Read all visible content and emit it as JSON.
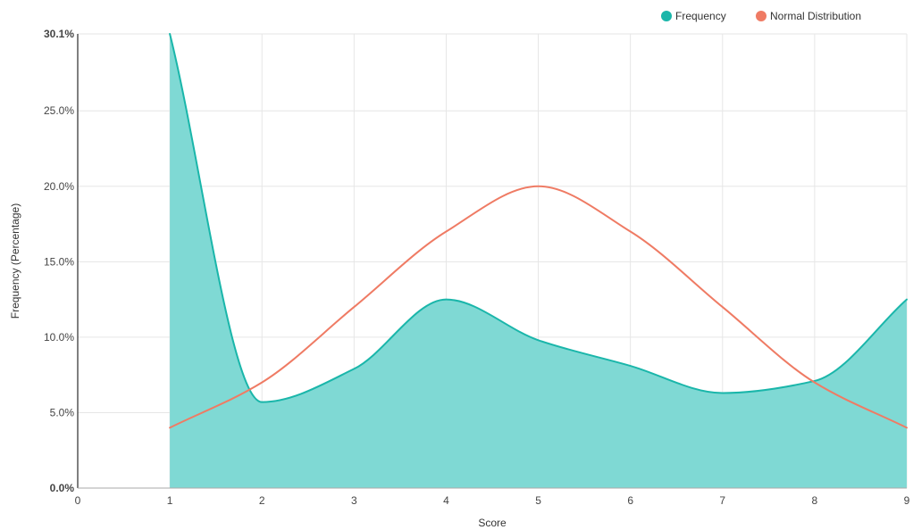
{
  "chart_data": {
    "type": "area",
    "x": [
      1,
      2,
      3,
      4,
      5,
      6,
      7,
      8,
      9
    ],
    "series": [
      {
        "name": "Frequency",
        "type": "area",
        "color": "#1ab6aa",
        "fill": "#7fd9d4",
        "values": [
          30.1,
          5.7,
          7.9,
          12.5,
          9.8,
          8.1,
          6.3,
          7.1,
          12.5
        ]
      },
      {
        "name": "Normal Distribution",
        "type": "line",
        "color": "#ef7b64",
        "values": [
          4.0,
          7.0,
          12.0,
          17.0,
          20.0,
          17.0,
          12.0,
          7.0,
          4.0
        ]
      }
    ],
    "xlabel": "Score",
    "ylabel": "Frequency (Percentage)",
    "xlim": [
      0,
      9
    ],
    "ylim": [
      0,
      30.1
    ],
    "x_ticks": [
      "0",
      "1",
      "2",
      "3",
      "4",
      "5",
      "6",
      "7",
      "8",
      "9"
    ],
    "y_ticks": [
      {
        "value": 0,
        "label": "0.0%"
      },
      {
        "value": 5,
        "label": "5.0%"
      },
      {
        "value": 10,
        "label": "10.0%"
      },
      {
        "value": 15,
        "label": "15.0%"
      },
      {
        "value": 20,
        "label": "20.0%"
      },
      {
        "value": 25,
        "label": "25.0%"
      },
      {
        "value": 30.1,
        "label": "30.1%"
      }
    ],
    "grid": true,
    "legend_position": "top-right"
  }
}
